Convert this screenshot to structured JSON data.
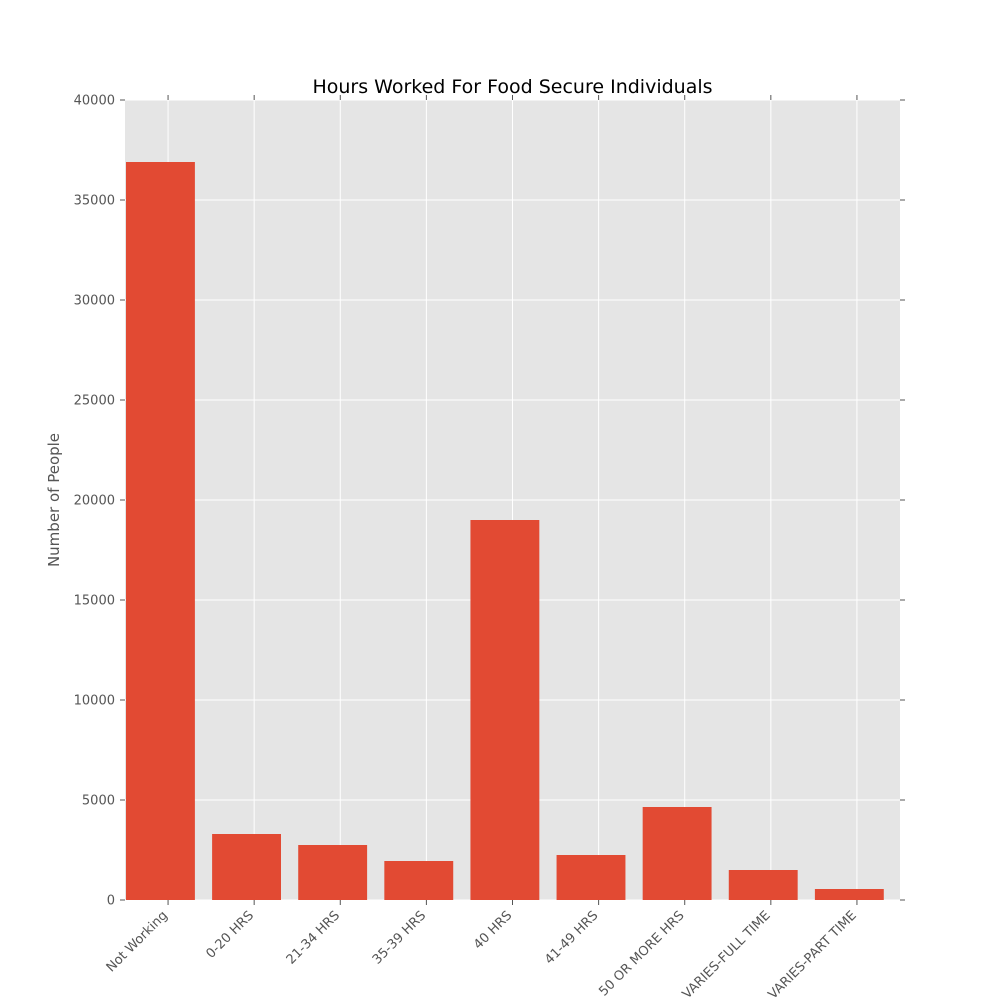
{
  "colors": {
    "bar": "#E24A33",
    "plot_bg": "#E5E5E5",
    "grid": "#FFFFFF",
    "tick": "#555555",
    "text": "#555555",
    "title": "#000000"
  },
  "chart_data": {
    "type": "bar",
    "title": "Hours Worked For Food Secure Individuals",
    "xlabel": "",
    "ylabel": "Number of People",
    "categories": [
      "Not Working",
      "0-20 HRS",
      "21-34 HRS",
      "35-39 HRS",
      "40 HRS",
      "41-49 HRS",
      "50 OR MORE HRS",
      "VARIES-FULL TIME",
      "VARIES-PART TIME"
    ],
    "values": [
      36900,
      3300,
      2750,
      1950,
      19000,
      2250,
      4650,
      1500,
      550
    ],
    "ylim": [
      0,
      40000
    ],
    "yticks": [
      0,
      5000,
      10000,
      15000,
      20000,
      25000,
      30000,
      35000,
      40000
    ],
    "grid": true,
    "legend": "none"
  }
}
